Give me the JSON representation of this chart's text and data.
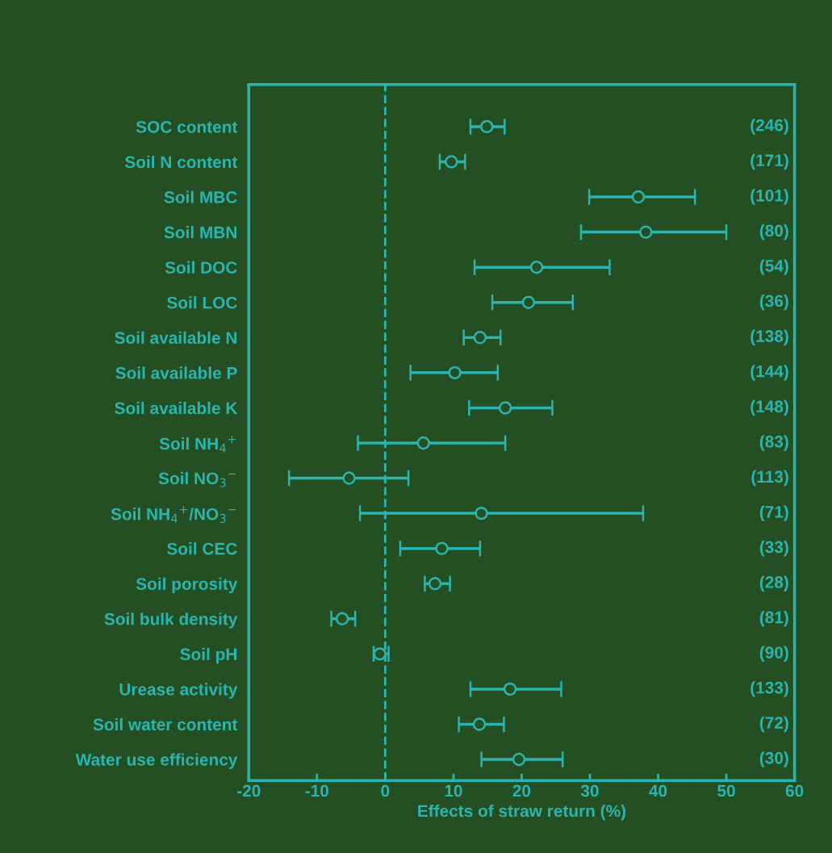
{
  "chart_data": {
    "type": "scatter",
    "orientation": "horizontal",
    "xlabel": "Effects of straw return (%)",
    "categories": [
      "SOC content",
      "Soil N content",
      "Soil MBC",
      "Soil MBN",
      "Soil DOC",
      "Soil LOC",
      "Soil available N",
      "Soil available P",
      "Soil available K",
      "Soil NH$_{4}$$^{+}$",
      "Soil NO$_{3}$$^{−}$",
      "Soil NH$_{4}$$^{+}$/NO$_{3}$$^{−}$",
      "Soil CEC",
      "Soil porosity",
      "Soil bulk density",
      "Soil pH",
      "Urease activity",
      "Soil water content",
      "Water use efficiency"
    ],
    "values": [
      14.9,
      9.7,
      37.1,
      38.2,
      22.2,
      21.0,
      13.9,
      10.2,
      17.6,
      5.6,
      -5.3,
      14.1,
      8.3,
      7.3,
      -6.3,
      -0.8,
      18.3,
      13.8,
      19.6
    ],
    "errors": [
      [
        12.5,
        17.5
      ],
      [
        8.0,
        11.7
      ],
      [
        29.9,
        45.4
      ],
      [
        28.7,
        50.0
      ],
      [
        13.1,
        32.9
      ],
      [
        15.7,
        27.5
      ],
      [
        11.5,
        16.9
      ],
      [
        3.7,
        16.5
      ],
      [
        12.3,
        24.5
      ],
      [
        -4.0,
        17.6
      ],
      [
        -14.1,
        3.4
      ],
      [
        -3.7,
        37.8
      ],
      [
        2.2,
        13.9
      ],
      [
        5.8,
        9.5
      ],
      [
        -7.9,
        -4.4
      ],
      [
        -1.7,
        0.5
      ],
      [
        12.5,
        25.8
      ],
      [
        10.8,
        17.4
      ],
      [
        14.1,
        26.0
      ]
    ],
    "color": "#2bb5b0",
    "marker": "circle",
    "xlim": [
      -20,
      60
    ],
    "xticks": [
      -20,
      -10,
      0,
      10,
      20,
      30,
      40,
      50,
      60
    ],
    "grid": false,
    "legend": false,
    "ref_lines": [
      {
        "axis": "x",
        "value": 0,
        "line_style": "dashed",
        "color": "#2bb5b0"
      }
    ],
    "annotations": [
      "(246)",
      "(171)",
      "(101)",
      "(80)",
      "(54)",
      "(36)",
      "(138)",
      "(144)",
      "(148)",
      "(83)",
      "(113)",
      "(71)",
      "(33)",
      "(28)",
      "(81)",
      "(90)",
      "(133)",
      "(72)",
      "(30)"
    ]
  }
}
